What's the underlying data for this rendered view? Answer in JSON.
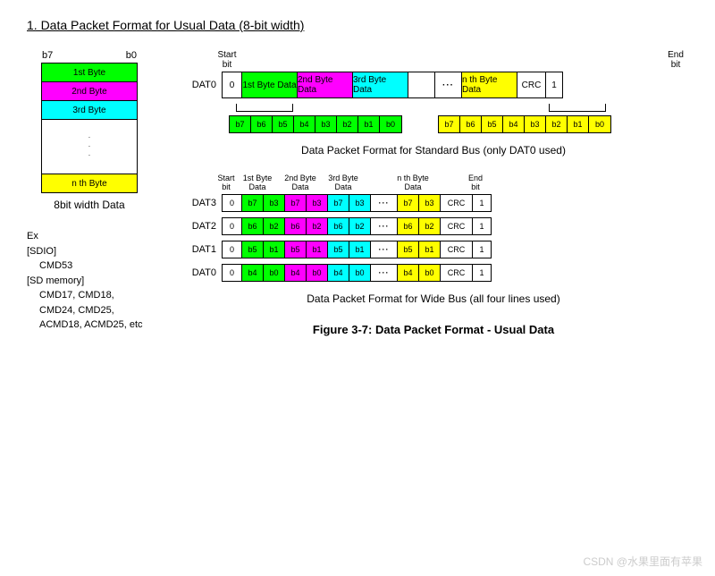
{
  "title": "1. Data Packet Format for Usual Data (8-bit width)",
  "colors": {
    "green": "#00ff00",
    "magenta": "#ff00ff",
    "cyan": "#00ffff",
    "yellow": "#ffff00",
    "white": "#ffffff"
  },
  "left_stack": {
    "bit_hi": "b7",
    "bit_lo": "b0",
    "rows": [
      {
        "label": "1st Byte",
        "color": "#00ff00"
      },
      {
        "label": "2nd Byte",
        "color": "#ff00ff"
      },
      {
        "label": "3rd Byte",
        "color": "#00ffff"
      }
    ],
    "last_row": {
      "label": "n th Byte",
      "color": "#ffff00"
    },
    "caption": "8bit width Data"
  },
  "ex": {
    "heading": "Ex",
    "sdio": "[SDIO]",
    "sdio_items": "CMD53",
    "sdmem": "[SD memory]",
    "sdmem_items": "CMD17, CMD18, CMD24, CMD25, ACMD18, ACMD25, etc"
  },
  "standard": {
    "start_label": "Start bit",
    "end_label": "End bit",
    "dat": "DAT0",
    "start": "0",
    "end": "1",
    "crc": "CRC",
    "bytes": [
      {
        "label": "1st Byte Data",
        "color": "#00ff00"
      },
      {
        "label": "2nd Byte Data",
        "color": "#ff00ff"
      },
      {
        "label": "3rd Byte Data",
        "color": "#00ffff"
      }
    ],
    "nth": {
      "label": "n th Byte Data",
      "color": "#ffff00"
    },
    "bits_green": [
      "b7",
      "b6",
      "b5",
      "b4",
      "b3",
      "b2",
      "b1",
      "b0"
    ],
    "bits_yellow": [
      "b7",
      "b6",
      "b5",
      "b4",
      "b3",
      "b2",
      "b1",
      "b0"
    ],
    "caption": "Data Packet Format for Standard Bus (only DAT0 used)"
  },
  "wide": {
    "start_label": "Start bit",
    "end_label": "End bit",
    "byte_labels": [
      "1st Byte Data",
      "2nd Byte Data",
      "3rd Byte Data"
    ],
    "nth_label": "n th Byte Data",
    "crc": "CRC",
    "start": "0",
    "end": "1",
    "lines": [
      {
        "name": "DAT3",
        "bits": [
          [
            "b7",
            "b3"
          ],
          [
            "b7",
            "b3"
          ],
          [
            "b7",
            "b3"
          ]
        ],
        "nth": [
          "b7",
          "b3"
        ]
      },
      {
        "name": "DAT2",
        "bits": [
          [
            "b6",
            "b2"
          ],
          [
            "b6",
            "b2"
          ],
          [
            "b6",
            "b2"
          ]
        ],
        "nth": [
          "b6",
          "b2"
        ]
      },
      {
        "name": "DAT1",
        "bits": [
          [
            "b5",
            "b1"
          ],
          [
            "b5",
            "b1"
          ],
          [
            "b5",
            "b1"
          ]
        ],
        "nth": [
          "b5",
          "b1"
        ]
      },
      {
        "name": "DAT0",
        "bits": [
          [
            "b4",
            "b0"
          ],
          [
            "b4",
            "b0"
          ],
          [
            "b4",
            "b0"
          ]
        ],
        "nth": [
          "b4",
          "b0"
        ]
      }
    ],
    "byte_colors": [
      "#00ff00",
      "#ff00ff",
      "#00ffff"
    ],
    "nth_color": "#ffff00",
    "caption": "Data Packet Format for Wide Bus (all four lines used)"
  },
  "figure_caption": "Figure 3-7: Data Packet Format - Usual Data",
  "watermark": "CSDN @水果里面有苹果"
}
